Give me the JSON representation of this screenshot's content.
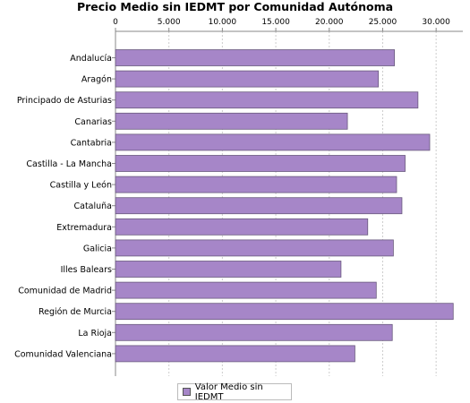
{
  "chart_data": {
    "type": "bar",
    "orientation": "horizontal",
    "title": "Precio Medio sin IEDMT por Comunidad Autónoma",
    "categories": [
      "Andalucía",
      "Aragón",
      "Principado de Asturias",
      "Canarias",
      "Cantabria",
      "Castilla - La Mancha",
      "Castilla y León",
      "Cataluña",
      "Extremadura",
      "Galicia",
      "Illes Balears",
      "Comunidad de Madrid",
      "Región de Murcia",
      "La Rioja",
      "Comunidad Valenciana"
    ],
    "series": [
      {
        "name": "Valor Medio sin IEDMT",
        "color": "#a686c8",
        "values": [
          26100,
          24600,
          28300,
          21700,
          29400,
          27100,
          26300,
          26800,
          23600,
          26000,
          21100,
          24400,
          31600,
          25900,
          22400
        ]
      }
    ],
    "xticks": [
      "0",
      "5.000",
      "10.000",
      "15.000",
      "20.000",
      "25.000",
      "30.000"
    ],
    "xtick_values": [
      0,
      5000,
      10000,
      15000,
      20000,
      25000,
      30000
    ],
    "xlim": [
      0,
      32500
    ],
    "x_axis_position": "top",
    "grid": true,
    "legend_position": "bottom"
  }
}
